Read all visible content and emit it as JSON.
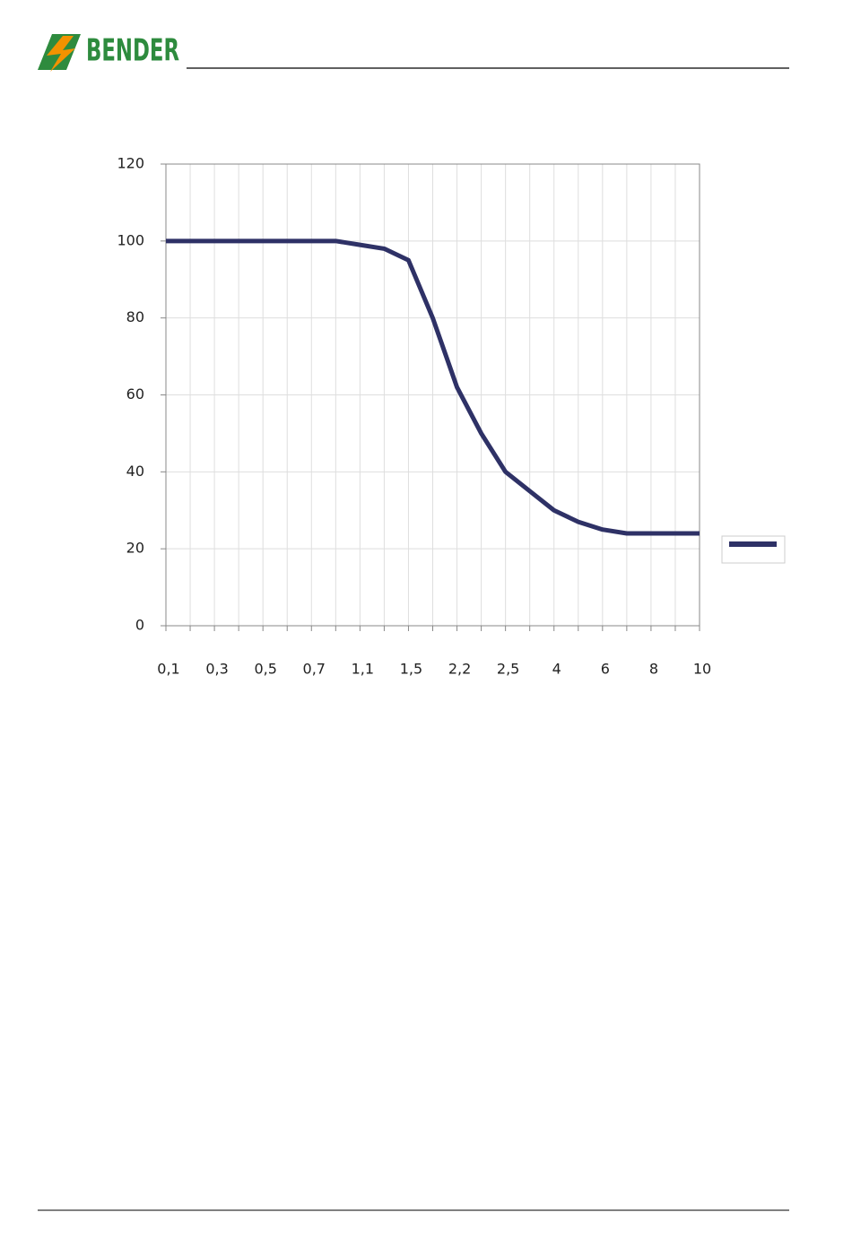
{
  "header": {
    "logo": "BENDER"
  },
  "chart_data": {
    "type": "line",
    "categories": [
      "0,1",
      null,
      "0,3",
      null,
      "0,5",
      null,
      "0,7",
      null,
      "1,1",
      null,
      "1,5",
      null,
      "2,2",
      null,
      "2,5",
      null,
      "4",
      null,
      "6",
      null,
      "8",
      null,
      "10"
    ],
    "series": [
      {
        "color": "#2e3166",
        "values": [
          100,
          100,
          100,
          100,
          100,
          100,
          100,
          100,
          99,
          98,
          95,
          80,
          62,
          50,
          40,
          35,
          30,
          27,
          25,
          24,
          24,
          24,
          24
        ]
      }
    ],
    "ylim": [
      0,
      120
    ],
    "yticks": [
      0,
      20,
      40,
      60,
      80,
      100,
      120
    ],
    "grid": true,
    "legend": "right"
  }
}
